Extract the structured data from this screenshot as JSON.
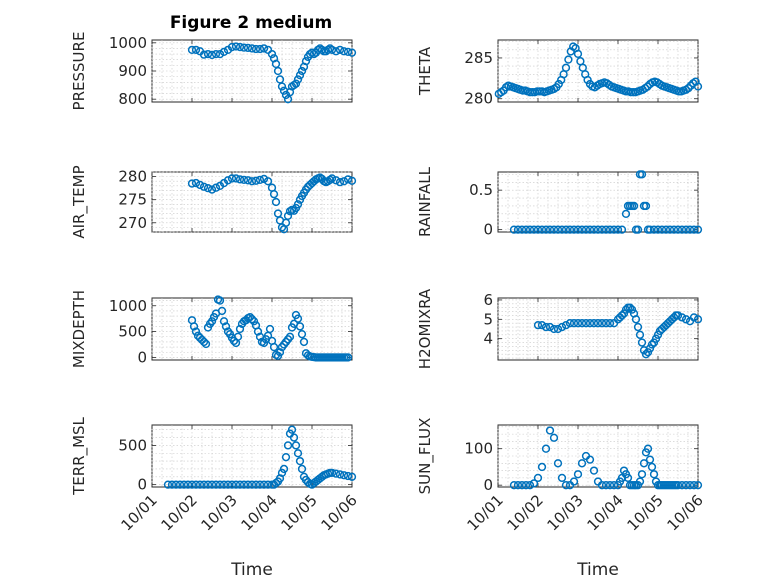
{
  "title": "Figure 2 medium",
  "colors": {
    "marker": "#0072bd",
    "axis": "#262626",
    "grid": "#c8c8c8"
  },
  "chart_data": [
    {
      "type": "scatter",
      "ylabel": "PRESSURE",
      "xlabel": "",
      "x_range": [
        "10/01",
        "10/06"
      ],
      "xticks": [
        "10/01",
        "10/02",
        "10/03",
        "10/04",
        "10/05",
        "10/06"
      ],
      "xtick_labels_visible": false,
      "ylim": [
        790,
        1010
      ],
      "yticks": [
        800,
        900,
        1000
      ],
      "grid": true,
      "x": [
        1.0,
        1.1,
        1.2,
        1.3,
        1.4,
        1.5,
        1.6,
        1.7,
        1.8,
        1.9,
        2.0,
        2.1,
        2.2,
        2.3,
        2.4,
        2.5,
        2.6,
        2.7,
        2.8,
        2.9,
        3.0,
        3.05,
        3.1,
        3.15,
        3.2,
        3.25,
        3.3,
        3.35,
        3.4,
        3.45,
        3.5,
        3.55,
        3.6,
        3.65,
        3.7,
        3.75,
        3.8,
        3.85,
        3.9,
        3.95,
        4.0,
        4.05,
        4.1,
        4.15,
        4.2,
        4.25,
        4.3,
        4.35,
        4.4,
        4.45,
        4.5,
        4.6,
        4.7,
        4.8,
        4.9,
        5.0
      ],
      "y": [
        975,
        975,
        970,
        958,
        960,
        957,
        960,
        960,
        968,
        975,
        985,
        987,
        985,
        983,
        982,
        980,
        978,
        978,
        980,
        975,
        960,
        945,
        925,
        900,
        870,
        845,
        830,
        815,
        800,
        825,
        845,
        850,
        855,
        870,
        885,
        900,
        915,
        935,
        950,
        960,
        965,
        960,
        965,
        975,
        980,
        975,
        970,
        970,
        975,
        980,
        975,
        970,
        975,
        970,
        968,
        965
      ]
    },
    {
      "type": "scatter",
      "ylabel": "THETA",
      "xlabel": "",
      "x_range": [
        "10/01",
        "10/06"
      ],
      "xticks": [
        "10/01",
        "10/02",
        "10/03",
        "10/04",
        "10/05",
        "10/06"
      ],
      "xtick_labels_visible": false,
      "ylim": [
        279.6,
        287.2
      ],
      "yticks": [
        280,
        285
      ],
      "grid": true,
      "x": [
        0.02,
        0.08,
        0.14,
        0.2,
        0.26,
        0.32,
        0.38,
        0.44,
        0.5,
        0.56,
        0.62,
        0.68,
        0.74,
        0.8,
        0.86,
        0.92,
        0.98,
        1.04,
        1.1,
        1.16,
        1.22,
        1.28,
        1.34,
        1.4,
        1.46,
        1.52,
        1.58,
        1.64,
        1.7,
        1.76,
        1.82,
        1.88,
        1.94,
        2.0,
        2.06,
        2.12,
        2.18,
        2.24,
        2.3,
        2.36,
        2.42,
        2.48,
        2.54,
        2.6,
        2.66,
        2.72,
        2.78,
        2.84,
        2.9,
        2.96,
        3.02,
        3.08,
        3.14,
        3.2,
        3.26,
        3.32,
        3.38,
        3.44,
        3.5,
        3.56,
        3.62,
        3.68,
        3.74,
        3.8,
        3.86,
        3.92,
        3.98,
        4.04,
        4.1,
        4.16,
        4.22,
        4.28,
        4.34,
        4.4,
        4.46,
        4.52,
        4.58,
        4.64,
        4.7,
        4.76,
        4.82,
        4.88,
        4.94,
        5.0
      ],
      "y": [
        280.6,
        280.8,
        281.0,
        281.4,
        281.6,
        281.5,
        281.4,
        281.3,
        281.2,
        281.1,
        281.0,
        281.0,
        280.9,
        280.8,
        280.8,
        280.8,
        280.9,
        280.9,
        280.9,
        280.8,
        280.9,
        281.0,
        281.1,
        281.2,
        281.4,
        281.8,
        282.3,
        283.0,
        283.8,
        284.8,
        285.8,
        286.4,
        286.2,
        285.5,
        284.6,
        283.8,
        283.0,
        282.3,
        281.8,
        281.5,
        281.4,
        281.6,
        281.8,
        281.9,
        282.0,
        281.9,
        281.7,
        281.5,
        281.4,
        281.3,
        281.2,
        281.1,
        281.0,
        280.9,
        280.9,
        280.8,
        280.8,
        280.8,
        280.9,
        281.0,
        281.1,
        281.3,
        281.5,
        281.8,
        282.0,
        282.1,
        282.0,
        281.8,
        281.6,
        281.5,
        281.4,
        281.3,
        281.2,
        281.1,
        281.0,
        280.9,
        280.9,
        281.0,
        281.1,
        281.3,
        281.6,
        281.9,
        282.1,
        281.5
      ]
    },
    {
      "type": "scatter",
      "ylabel": "AIR_TEMP",
      "xlabel": "",
      "x_range": [
        "10/01",
        "10/06"
      ],
      "xticks": [
        "10/01",
        "10/02",
        "10/03",
        "10/04",
        "10/05",
        "10/06"
      ],
      "xtick_labels_visible": false,
      "ylim": [
        268,
        281
      ],
      "yticks": [
        270,
        275,
        280
      ],
      "grid": true,
      "x": [
        1.0,
        1.1,
        1.2,
        1.3,
        1.4,
        1.5,
        1.6,
        1.7,
        1.8,
        1.9,
        2.0,
        2.1,
        2.2,
        2.3,
        2.4,
        2.5,
        2.6,
        2.7,
        2.8,
        2.9,
        3.0,
        3.05,
        3.1,
        3.15,
        3.2,
        3.25,
        3.3,
        3.35,
        3.4,
        3.45,
        3.5,
        3.55,
        3.6,
        3.65,
        3.7,
        3.75,
        3.8,
        3.85,
        3.9,
        3.95,
        4.0,
        4.05,
        4.1,
        4.15,
        4.2,
        4.25,
        4.3,
        4.35,
        4.4,
        4.45,
        4.5,
        4.6,
        4.7,
        4.8,
        4.9,
        5.0
      ],
      "y": [
        278.5,
        278.6,
        278.2,
        277.8,
        277.5,
        277.2,
        277.6,
        278.0,
        278.6,
        279.2,
        279.6,
        279.6,
        279.4,
        279.3,
        279.2,
        279.0,
        279.1,
        279.3,
        279.5,
        279.0,
        277.6,
        276.2,
        274.5,
        272.0,
        270.5,
        269.0,
        268.6,
        270.0,
        271.5,
        272.5,
        272.8,
        272.6,
        273.2,
        274.0,
        275.0,
        275.8,
        276.5,
        277.2,
        277.8,
        278.2,
        278.6,
        279.0,
        279.4,
        279.6,
        279.8,
        279.5,
        279.0,
        278.8,
        279.0,
        279.3,
        279.6,
        279.2,
        278.8,
        279.0,
        279.4,
        279.1
      ]
    },
    {
      "type": "scatter",
      "ylabel": "RAINFALL",
      "xlabel": "",
      "x_range": [
        "10/01",
        "10/06"
      ],
      "xticks": [
        "10/01",
        "10/02",
        "10/03",
        "10/04",
        "10/05",
        "10/06"
      ],
      "xtick_labels_visible": false,
      "ylim": [
        -0.03,
        0.73
      ],
      "yticks": [
        0,
        0.5
      ],
      "grid": true,
      "x": [
        0.4,
        0.5,
        0.6,
        0.7,
        0.8,
        0.9,
        1.0,
        1.1,
        1.2,
        1.3,
        1.4,
        1.5,
        1.6,
        1.7,
        1.8,
        1.9,
        2.0,
        2.1,
        2.2,
        2.3,
        2.4,
        2.5,
        2.6,
        2.7,
        2.8,
        2.9,
        3.0,
        3.1,
        3.2,
        3.25,
        3.3,
        3.35,
        3.4,
        3.45,
        3.5,
        3.55,
        3.6,
        3.65,
        3.7,
        3.75,
        3.8,
        3.9,
        4.0,
        4.1,
        4.2,
        4.3,
        4.4,
        4.5,
        4.6,
        4.7,
        4.8,
        4.9,
        5.0
      ],
      "y": [
        0,
        0,
        0,
        0,
        0,
        0,
        0,
        0,
        0,
        0,
        0,
        0,
        0,
        0,
        0,
        0,
        0,
        0,
        0,
        0,
        0,
        0,
        0,
        0,
        0,
        0,
        0,
        0,
        0.2,
        0.3,
        0.3,
        0.3,
        0.3,
        0,
        0,
        0.7,
        0.7,
        0.3,
        0.3,
        0,
        0,
        0,
        0,
        0,
        0,
        0,
        0,
        0,
        0,
        0,
        0,
        0,
        0
      ]
    },
    {
      "type": "scatter",
      "ylabel": "MIXDEPTH",
      "xlabel": "",
      "x_range": [
        "10/01",
        "10/06"
      ],
      "xticks": [
        "10/01",
        "10/02",
        "10/03",
        "10/04",
        "10/05",
        "10/06"
      ],
      "xtick_labels_visible": false,
      "ylim": [
        -50,
        1150
      ],
      "yticks": [
        0,
        500,
        1000
      ],
      "grid": true,
      "x": [
        1.0,
        1.05,
        1.1,
        1.15,
        1.2,
        1.25,
        1.3,
        1.35,
        1.4,
        1.45,
        1.5,
        1.55,
        1.6,
        1.65,
        1.7,
        1.75,
        1.8,
        1.85,
        1.9,
        1.95,
        2.0,
        2.05,
        2.1,
        2.15,
        2.2,
        2.25,
        2.3,
        2.35,
        2.4,
        2.45,
        2.5,
        2.55,
        2.6,
        2.65,
        2.7,
        2.75,
        2.8,
        2.85,
        2.9,
        2.95,
        3.0,
        3.05,
        3.1,
        3.15,
        3.2,
        3.25,
        3.3,
        3.35,
        3.4,
        3.45,
        3.5,
        3.55,
        3.6,
        3.65,
        3.7,
        3.75,
        3.8,
        3.85,
        3.9,
        3.95,
        4.0,
        4.05,
        4.1,
        4.15,
        4.2,
        4.25,
        4.3,
        4.35,
        4.4,
        4.45,
        4.5,
        4.55,
        4.6,
        4.65,
        4.7,
        4.75,
        4.8,
        4.85,
        4.9
      ],
      "y": [
        720,
        600,
        500,
        420,
        380,
        340,
        300,
        260,
        580,
        650,
        700,
        780,
        850,
        1120,
        1100,
        900,
        700,
        600,
        500,
        450,
        380,
        320,
        280,
        400,
        550,
        650,
        700,
        720,
        760,
        780,
        740,
        700,
        620,
        500,
        400,
        300,
        280,
        350,
        420,
        550,
        320,
        200,
        50,
        30,
        100,
        200,
        250,
        300,
        350,
        400,
        580,
        650,
        820,
        750,
        600,
        450,
        300,
        80,
        40,
        20,
        10,
        5,
        0,
        0,
        0,
        0,
        0,
        0,
        0,
        0,
        0,
        0,
        0,
        0,
        0,
        0,
        0,
        0,
        0
      ]
    },
    {
      "type": "scatter",
      "ylabel": "H2OMIXRA",
      "xlabel": "",
      "x_range": [
        "10/01",
        "10/06"
      ],
      "xticks": [
        "10/01",
        "10/02",
        "10/03",
        "10/04",
        "10/05",
        "10/06"
      ],
      "xtick_labels_visible": false,
      "ylim": [
        2.9,
        6.1
      ],
      "yticks": [
        4,
        5,
        6
      ],
      "grid": true,
      "x": [
        1.0,
        1.1,
        1.2,
        1.3,
        1.4,
        1.5,
        1.6,
        1.7,
        1.8,
        1.9,
        2.0,
        2.1,
        2.2,
        2.3,
        2.4,
        2.5,
        2.6,
        2.7,
        2.8,
        2.9,
        3.0,
        3.05,
        3.1,
        3.15,
        3.2,
        3.25,
        3.3,
        3.35,
        3.4,
        3.45,
        3.5,
        3.55,
        3.6,
        3.65,
        3.7,
        3.75,
        3.8,
        3.85,
        3.9,
        3.95,
        4.0,
        4.05,
        4.1,
        4.15,
        4.2,
        4.25,
        4.3,
        4.35,
        4.4,
        4.45,
        4.5,
        4.6,
        4.7,
        4.8,
        4.9,
        5.0
      ],
      "y": [
        4.7,
        4.7,
        4.6,
        4.6,
        4.5,
        4.5,
        4.6,
        4.7,
        4.8,
        4.8,
        4.8,
        4.8,
        4.8,
        4.8,
        4.8,
        4.8,
        4.8,
        4.8,
        4.8,
        4.8,
        5.0,
        5.1,
        5.2,
        5.3,
        5.5,
        5.6,
        5.6,
        5.5,
        5.3,
        5.0,
        4.6,
        4.2,
        3.8,
        3.4,
        3.2,
        3.3,
        3.5,
        3.7,
        3.8,
        4.0,
        4.2,
        4.4,
        4.5,
        4.6,
        4.7,
        4.8,
        4.9,
        5.0,
        5.1,
        5.2,
        5.2,
        5.1,
        5.0,
        4.9,
        5.1,
        5.0
      ]
    },
    {
      "type": "scatter",
      "ylabel": "TERR_MSL",
      "xlabel": "Time",
      "x_range": [
        "10/01",
        "10/06"
      ],
      "xticks": [
        "10/01",
        "10/02",
        "10/03",
        "10/04",
        "10/05",
        "10/06"
      ],
      "xtick_labels_visible": true,
      "ylim": [
        -30,
        760
      ],
      "yticks": [
        0,
        500
      ],
      "grid": true,
      "x": [
        0.4,
        0.5,
        0.6,
        0.7,
        0.8,
        0.9,
        1.0,
        1.1,
        1.2,
        1.3,
        1.4,
        1.5,
        1.6,
        1.7,
        1.8,
        1.9,
        2.0,
        2.1,
        2.2,
        2.3,
        2.4,
        2.5,
        2.6,
        2.7,
        2.8,
        2.9,
        3.0,
        3.05,
        3.1,
        3.15,
        3.2,
        3.25,
        3.3,
        3.35,
        3.4,
        3.45,
        3.5,
        3.55,
        3.6,
        3.65,
        3.7,
        3.75,
        3.8,
        3.85,
        3.9,
        3.95,
        4.0,
        4.05,
        4.1,
        4.15,
        4.2,
        4.25,
        4.3,
        4.35,
        4.4,
        4.45,
        4.5,
        4.6,
        4.7,
        4.8,
        4.9,
        5.0
      ],
      "y": [
        0,
        0,
        0,
        0,
        0,
        0,
        0,
        0,
        0,
        0,
        0,
        0,
        0,
        0,
        0,
        0,
        0,
        0,
        0,
        0,
        0,
        0,
        0,
        0,
        0,
        0,
        0,
        0,
        20,
        40,
        80,
        150,
        200,
        350,
        500,
        650,
        700,
        600,
        500,
        400,
        300,
        200,
        100,
        60,
        30,
        10,
        0,
        20,
        40,
        60,
        80,
        100,
        120,
        130,
        140,
        150,
        150,
        140,
        130,
        120,
        110,
        100
      ]
    },
    {
      "type": "scatter",
      "ylabel": "SUN_FLUX",
      "xlabel": "Time",
      "x_range": [
        "10/01",
        "10/06"
      ],
      "xticks": [
        "10/01",
        "10/02",
        "10/03",
        "10/04",
        "10/05",
        "10/06"
      ],
      "xtick_labels_visible": true,
      "ylim": [
        -5,
        165
      ],
      "yticks": [
        0,
        100
      ],
      "grid": true,
      "x": [
        0.4,
        0.5,
        0.6,
        0.7,
        0.8,
        0.9,
        1.0,
        1.1,
        1.2,
        1.3,
        1.4,
        1.5,
        1.6,
        1.7,
        1.8,
        1.9,
        2.0,
        2.1,
        2.2,
        2.3,
        2.4,
        2.5,
        2.6,
        2.7,
        2.8,
        2.9,
        3.0,
        3.05,
        3.1,
        3.15,
        3.2,
        3.25,
        3.3,
        3.35,
        3.4,
        3.45,
        3.5,
        3.55,
        3.6,
        3.65,
        3.7,
        3.75,
        3.8,
        3.85,
        3.9,
        3.95,
        4.0,
        4.05,
        4.1,
        4.15,
        4.2,
        4.25,
        4.3,
        4.35,
        4.4,
        4.45,
        4.5,
        4.6,
        4.7,
        4.8,
        4.9,
        5.0
      ],
      "y": [
        0,
        0,
        0,
        0,
        0,
        5,
        20,
        50,
        100,
        150,
        130,
        60,
        20,
        0,
        0,
        10,
        30,
        60,
        80,
        70,
        40,
        10,
        0,
        0,
        0,
        0,
        0,
        10,
        20,
        40,
        30,
        20,
        0,
        0,
        0,
        0,
        0,
        10,
        30,
        60,
        90,
        100,
        70,
        50,
        30,
        10,
        0,
        0,
        0,
        0,
        0,
        0,
        0,
        0,
        0,
        0,
        0,
        0,
        0,
        0,
        0,
        0
      ]
    }
  ]
}
